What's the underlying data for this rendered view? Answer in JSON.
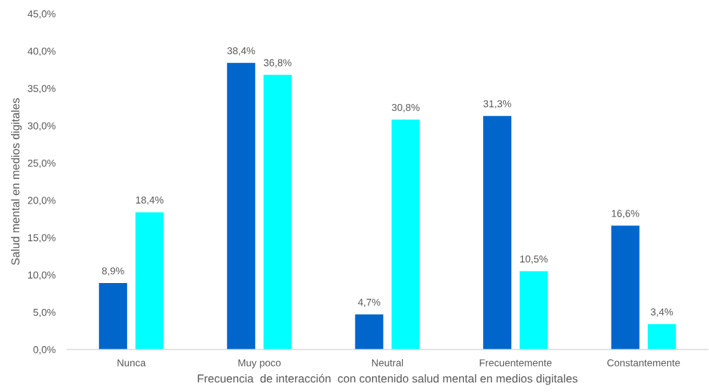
{
  "chart_data": {
    "type": "bar",
    "xlabel": "Frecuencia  de interacción  con contenido salud mental en medios digitales",
    "ylabel": "Salud mental en medios digitales",
    "categories": [
      "Nunca",
      "Muy poco",
      "Neutral",
      "Frecuentemente",
      "Constantemente"
    ],
    "series": [
      {
        "color": "#0066cc",
        "values": [
          8.9,
          38.4,
          4.7,
          31.3,
          16.6
        ],
        "value_labels": [
          "8,9%",
          "38,4%",
          "4,7%",
          "31,3%",
          "16,6%"
        ]
      },
      {
        "color": "#00ffff",
        "values": [
          18.4,
          36.8,
          30.8,
          10.5,
          3.4
        ],
        "value_labels": [
          "18,4%",
          "36,8%",
          "30,8%",
          "10,5%",
          "3,4%"
        ]
      }
    ],
    "ylim": [
      0,
      45
    ],
    "yticks": [
      {
        "value": 0,
        "label": "0,0%"
      },
      {
        "value": 5,
        "label": "5,0%"
      },
      {
        "value": 10,
        "label": "10,0%"
      },
      {
        "value": 15,
        "label": "15,0%"
      },
      {
        "value": 20,
        "label": "20,0%"
      },
      {
        "value": 25,
        "label": "25,0%"
      },
      {
        "value": 30,
        "label": "30,0%"
      },
      {
        "value": 35,
        "label": "35,0%"
      },
      {
        "value": 40,
        "label": "40,0%"
      },
      {
        "value": 45,
        "label": "45,0%"
      }
    ]
  }
}
